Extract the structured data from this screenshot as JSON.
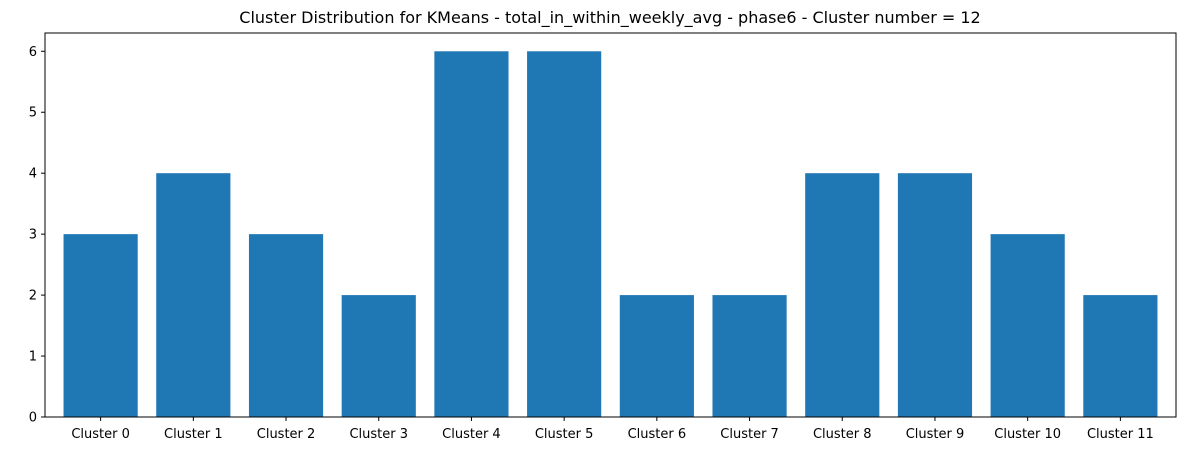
{
  "chart_data": {
    "type": "bar",
    "title": "Cluster Distribution for KMeans - total_in_within_weekly_avg - phase6 - Cluster number = 12",
    "xlabel": "",
    "ylabel": "",
    "categories": [
      "Cluster 0",
      "Cluster 1",
      "Cluster 2",
      "Cluster 3",
      "Cluster 4",
      "Cluster 5",
      "Cluster 6",
      "Cluster 7",
      "Cluster 8",
      "Cluster 9",
      "Cluster 10",
      "Cluster 11"
    ],
    "values": [
      3,
      4,
      3,
      2,
      6,
      6,
      2,
      2,
      4,
      4,
      3,
      2
    ],
    "ylim": [
      0,
      6.3
    ],
    "yticks": [
      0,
      1,
      2,
      3,
      4,
      5,
      6
    ],
    "bar_color": "#1f77b4",
    "grid": false,
    "legend": "none"
  }
}
